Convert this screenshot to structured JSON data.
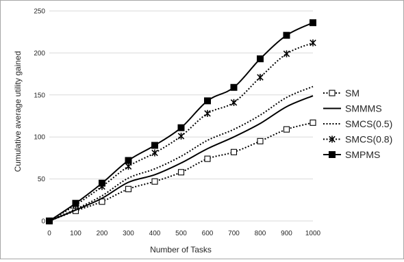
{
  "chart_data": {
    "type": "line",
    "title": "",
    "xlabel": "Number of Tasks",
    "ylabel": "Cumulative average utility gained",
    "x": [
      0,
      100,
      200,
      300,
      400,
      500,
      600,
      700,
      800,
      900,
      1000
    ],
    "x_ticks": [
      "0",
      "100",
      "200",
      "300",
      "400",
      "500",
      "600",
      "700",
      "800",
      "900",
      "1000"
    ],
    "y_ticks": [
      "0",
      "50",
      "100",
      "150",
      "200",
      "250"
    ],
    "xlim": [
      0,
      1000
    ],
    "ylim": [
      0,
      250
    ],
    "grid": "horizontal",
    "legend_position": "right",
    "series": [
      {
        "name": "SM",
        "values": [
          0,
          12,
          23,
          38,
          47,
          58,
          74,
          82,
          95,
          109,
          117
        ],
        "marker": "open-square",
        "dash": "dotted",
        "color": "#000000"
      },
      {
        "name": "SMMMS",
        "values": [
          0,
          13,
          27,
          46,
          55,
          69,
          86,
          100,
          116,
          136,
          149
        ],
        "marker": "none",
        "dash": "solid",
        "color": "#000000"
      },
      {
        "name": "SMCS(0.5)",
        "values": [
          0,
          14,
          30,
          51,
          62,
          77,
          96,
          109,
          126,
          147,
          160
        ],
        "marker": "none",
        "dash": "dotted",
        "color": "#000000"
      },
      {
        "name": "SMCS(0.8)",
        "values": [
          0,
          19,
          41,
          65,
          81,
          101,
          128,
          141,
          171,
          199,
          212
        ],
        "marker": "star",
        "dash": "dotted",
        "color": "#000000"
      },
      {
        "name": "SMPMS",
        "values": [
          0,
          21,
          45,
          72,
          90,
          111,
          143,
          159,
          193,
          221,
          236
        ],
        "marker": "filled-square",
        "dash": "solid",
        "color": "#000000"
      }
    ]
  }
}
